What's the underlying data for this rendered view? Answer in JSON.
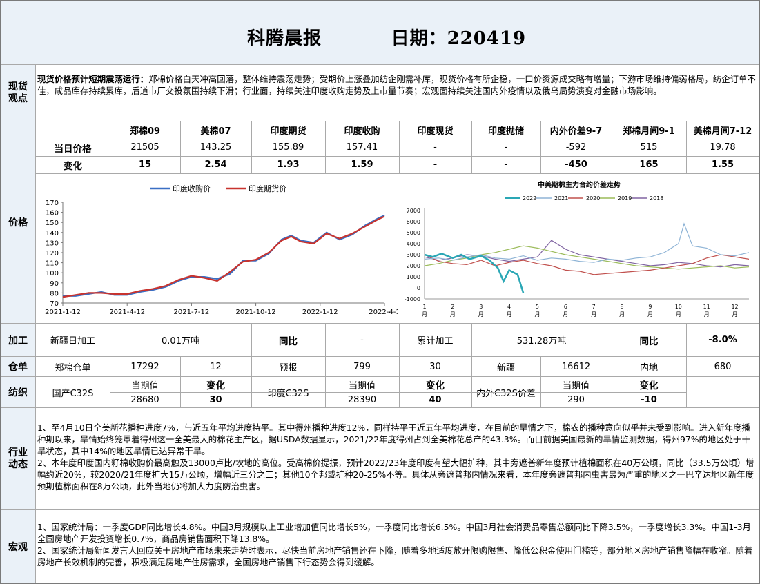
{
  "report": {
    "title": "科腾晨报",
    "date_label": "日期：",
    "date": "220419"
  },
  "spot_view": {
    "section_label": "现货\n观点",
    "lead": "现货价格预计短期震荡运行：",
    "text": "郑棉价格白天冲高回落，整体维持震荡走势；受期价上涨叠加纺企刚需补库，现货价格有所企稳，一口价资源成交略有增量；下游市场维持偏弱格局，纺企订单不佳，成品库存持续累库，后道市厂交投氛围持续下滑；行业面，持续关注印度收购走势及上市量节奏；宏观面持续关注国内外疫情以及俄乌局势演变对金融市场影响。"
  },
  "price": {
    "section_label": "价格",
    "headers": [
      "郑棉09",
      "美棉07",
      "印度期货",
      "印度收购",
      "印度现货",
      "印度抛储",
      "内外价差9-7",
      "郑棉月间9-1",
      "美棉月间7-12"
    ],
    "today_label": "当日价格",
    "today": [
      "21505",
      "143.25",
      "155.89",
      "157.41",
      "-",
      "-",
      "-592",
      "515",
      "19.78"
    ],
    "change_label": "变化",
    "change": [
      "15",
      "2.54",
      "1.93",
      "1.59",
      "-",
      "-",
      "-450",
      "165",
      "1.55"
    ]
  },
  "colors": {
    "panel_bg": "#eaf1f8",
    "border": "#a9a9a9",
    "india_purchase": "#3a6fc4",
    "india_futures": "#c8332e",
    "y2022": "#2aa7b5",
    "y2021": "#8fb4d6",
    "y2020": "#c0504d",
    "y2019": "#9bbb59",
    "y2018": "#8064a2"
  },
  "chart_data": [
    {
      "type": "line",
      "title": "",
      "legend": [
        "印度收购价",
        "印度期货价"
      ],
      "legend_position": "top",
      "x_ticks": [
        "2021-1-12",
        "2021-4-12",
        "2021-7-12",
        "2021-10-12",
        "2022-1-12",
        "2022-4-1"
      ],
      "ylim": [
        70,
        170
      ],
      "y_ticks": [
        70,
        80,
        90,
        100,
        110,
        120,
        130,
        140,
        150,
        160,
        170
      ],
      "series": [
        {
          "name": "印度收购价",
          "color": "#3a6fc4",
          "x": [
            0,
            4,
            8,
            12,
            16,
            20,
            24,
            28,
            32,
            36,
            40,
            44,
            48,
            52,
            56,
            60,
            64,
            68,
            71,
            74,
            78,
            82,
            86,
            90,
            94,
            98,
            100
          ],
          "y": [
            77,
            77,
            79,
            81,
            78,
            78,
            81,
            83,
            86,
            92,
            96,
            96,
            94,
            99,
            112,
            112,
            119,
            133,
            137,
            132,
            130,
            140,
            133,
            138,
            147,
            154,
            157
          ]
        },
        {
          "name": "印度期货价",
          "color": "#c8332e",
          "x": [
            0,
            4,
            8,
            12,
            16,
            20,
            24,
            28,
            32,
            36,
            40,
            44,
            48,
            52,
            56,
            60,
            64,
            68,
            71,
            74,
            78,
            82,
            86,
            90,
            94,
            98,
            100
          ],
          "y": [
            76,
            78,
            80,
            80,
            79,
            79,
            82,
            84,
            87,
            93,
            97,
            95,
            92,
            101,
            111,
            113,
            120,
            132,
            136,
            131,
            129,
            139,
            134,
            139,
            146,
            153,
            156
          ]
        }
      ]
    },
    {
      "type": "line",
      "title": "中美期棉主力合约价差走势",
      "legend": [
        "2022",
        "2021",
        "2020",
        "2019",
        "2018"
      ],
      "legend_position": "top",
      "x_ticks": [
        "1\n月",
        "2\n月",
        "3\n月",
        "4\n月",
        "5\n月",
        "6\n月",
        "7\n月",
        "8\n月",
        "9\n月",
        "10\n月",
        "11\n月",
        "12\n月"
      ],
      "ylim": [
        -1000,
        7000
      ],
      "y_ticks": [
        -1000,
        0,
        1000,
        2000,
        3000,
        4000,
        5000,
        6000,
        7000
      ],
      "series": [
        {
          "name": "2022",
          "color": "#2aa7b5",
          "x": [
            1,
            1.3,
            1.6,
            2,
            2.3,
            2.6,
            3,
            3.3,
            3.6,
            3.8,
            4,
            4.3,
            4.5
          ],
          "y": [
            3000,
            2800,
            3100,
            2700,
            3000,
            2600,
            2900,
            2500,
            1800,
            600,
            1600,
            1200,
            -450
          ]
        },
        {
          "name": "2021",
          "color": "#8fb4d6",
          "x": [
            1,
            1.5,
            2,
            2.5,
            3,
            3.5,
            4,
            4.5,
            5,
            5.5,
            6,
            6.5,
            7,
            7.5,
            8,
            8.5,
            9,
            9.5,
            10,
            10.2,
            10.5,
            11,
            11.5,
            12,
            12.5
          ],
          "y": [
            2600,
            2700,
            2500,
            2800,
            3000,
            2700,
            2600,
            2900,
            2500,
            2700,
            2600,
            2400,
            2300,
            2600,
            2500,
            2700,
            2800,
            3200,
            4000,
            5800,
            3800,
            3600,
            3000,
            2900,
            3200
          ]
        },
        {
          "name": "2020",
          "color": "#c0504d",
          "x": [
            1,
            1.5,
            2,
            2.5,
            3,
            3.5,
            4,
            4.5,
            5,
            5.5,
            6,
            6.5,
            7,
            7.5,
            8,
            8.5,
            9,
            9.5,
            10,
            10.5,
            11,
            11.5,
            12,
            12.5
          ],
          "y": [
            3000,
            2400,
            2200,
            2100,
            2500,
            2000,
            2300,
            2500,
            2200,
            2000,
            1600,
            1500,
            1200,
            1300,
            1400,
            1500,
            1600,
            1800,
            2000,
            2200,
            2700,
            3000,
            2800,
            2600
          ]
        },
        {
          "name": "2019",
          "color": "#9bbb59",
          "x": [
            1,
            1.5,
            2,
            2.5,
            3,
            3.5,
            4,
            4.5,
            5,
            5.5,
            6,
            6.5,
            7,
            7.5,
            8,
            8.5,
            9,
            9.5,
            10,
            10.5,
            11,
            11.5,
            12,
            12.5
          ],
          "y": [
            2000,
            2200,
            2500,
            2700,
            3000,
            3200,
            3500,
            3800,
            3600,
            3300,
            3000,
            2800,
            2600,
            2400,
            2200,
            2000,
            1900,
            1800,
            1700,
            1800,
            1900,
            2000,
            1800,
            1900
          ]
        },
        {
          "name": "2018",
          "color": "#8064a2",
          "x": [
            1,
            1.5,
            2,
            2.5,
            3,
            3.5,
            4,
            4.5,
            5,
            5.5,
            6,
            6.5,
            7,
            7.5,
            8,
            8.5,
            9,
            9.5,
            10,
            10.5,
            11,
            11.5,
            12,
            12.5
          ],
          "y": [
            2800,
            2500,
            2700,
            3000,
            2900,
            2600,
            2400,
            2600,
            2800,
            4300,
            3500,
            3000,
            2800,
            2600,
            2400,
            2200,
            2000,
            2100,
            2300,
            2200,
            2000,
            1900,
            2100,
            2000
          ]
        }
      ]
    }
  ],
  "processing": {
    "section_label": "加工",
    "xinjiang_daily_label": "新疆日加工",
    "xinjiang_daily_value": "0.01万吨",
    "yoy_label": "同比",
    "yoy_value": "-",
    "cumulative_label": "累计加工",
    "cumulative_value": "531.28万吨",
    "yoy2_label": "同比",
    "yoy2_value": "-8.0%"
  },
  "warehouse": {
    "section_label": "仓单",
    "zc_label": "郑棉仓单",
    "zc_value": "17292",
    "zc_change": "12",
    "forecast_label": "预报",
    "forecast_value": "799",
    "forecast_change": "30",
    "xinjiang_label": "新疆",
    "xinjiang_value": "16612",
    "inland_label": "内地",
    "inland_value": "680"
  },
  "textile": {
    "section_label": "纺织",
    "domestic_label": "国产C32S",
    "india_label": "印度C32S",
    "spread_label": "内外C32S价差",
    "current_label": "当期值",
    "change_label": "变化",
    "domestic_current": "28680",
    "domestic_change": "30",
    "india_current": "28390",
    "india_change": "40",
    "spread_current": "290",
    "spread_change": "-10"
  },
  "industry": {
    "section_label": "行业\n动态",
    "p1": "1、至4月10日全美新花播种进度7%，与近五年平均进度持平。其中得州播种进度12%，同样持平于近五年平均进度，在目前的旱情之下，棉农的播种意向似乎并未受到影响。进入新年度播种期以来，旱情始终笼罩着得州这一全美最大的棉花主产区，据USDA数据显示，2021/22年度得州占到全美棉花总产的43.3%。而目前据美国最新的旱情监测数据，得州97%的地区处于干旱状态，其中14%的地区旱情已达异常干旱。",
    "p2": "2、本年度印度国内籽棉收购价最高触及13000卢比/坎地的高位。受高棉价提振，预计2022/23年度印度有望大幅扩种，其中旁遮普新年度预计植棉面积在40万公顷，同比（33.5万公顷）增幅约近20%，较2020/21年度扩大15万公顷，增幅近三分之二；其他10个邦或扩种20-25%不等。具体从旁遮普邦内情况来看，本年度旁遮普邦内虫害最为严重的地区之一巴辛达地区新年度预期植棉面积在8万公顷，此外当地仍将加大力度防治虫害。"
  },
  "macro": {
    "section_label": "宏观",
    "p1": "1、国家统计局：一季度GDP同比增长4.8%。中国3月规模以上工业增加值同比增长5%，一季度同比增长6.5%。中国3月社会消费品零售总额同比下降3.5%，一季度增长3.3%。中国1-3月全国房地产开发投资增长0.7%，商品房销售面积下降13.8%。",
    "p2": "2、国家统计局新闻发言人回应关于房地产市场未来走势时表示，尽快当前房地产销售还在下降，随着多地适度放开限购限售、降低公积金使用门槛等，部分地区房地产销售降幅在收窄。随着房地产长效机制的完善，积极满足房地产住房需求，全国房地产销售下行态势会得到缓解。"
  }
}
